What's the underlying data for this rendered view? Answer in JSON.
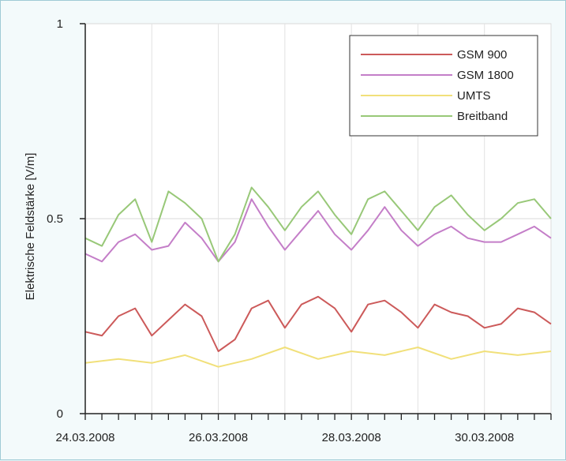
{
  "chart_data": {
    "type": "line",
    "title": "",
    "xlabel": "",
    "ylabel": "Elektrische Feldstärke [V/m]",
    "ylim": [
      0,
      1
    ],
    "xlim": [
      "2008-03-24",
      "2008-03-31"
    ],
    "y_ticks": [
      "0",
      "0.5",
      "1"
    ],
    "x_ticks": [
      "24.03.2008",
      "26.03.2008",
      "28.03.2008",
      "30.03.2008"
    ],
    "x_tick_dates": [
      "2008-03-24",
      "2008-03-26",
      "2008-03-28",
      "2008-03-30"
    ],
    "grid": true,
    "legend_position": "top-right",
    "series": [
      {
        "name": "GSM 900",
        "color": "#cc5a5a",
        "x": [
          "2008-03-24 00:00",
          "2008-03-24 06:00",
          "2008-03-24 12:00",
          "2008-03-24 18:00",
          "2008-03-25 00:00",
          "2008-03-25 06:00",
          "2008-03-25 12:00",
          "2008-03-25 18:00",
          "2008-03-26 00:00",
          "2008-03-26 06:00",
          "2008-03-26 12:00",
          "2008-03-26 18:00",
          "2008-03-27 00:00",
          "2008-03-27 06:00",
          "2008-03-27 12:00",
          "2008-03-27 18:00",
          "2008-03-28 00:00",
          "2008-03-28 06:00",
          "2008-03-28 12:00",
          "2008-03-28 18:00",
          "2008-03-29 00:00",
          "2008-03-29 06:00",
          "2008-03-29 12:00",
          "2008-03-29 18:00",
          "2008-03-30 00:00",
          "2008-03-30 06:00",
          "2008-03-30 12:00",
          "2008-03-30 18:00",
          "2008-03-31 00:00"
        ],
        "y": [
          0.21,
          0.2,
          0.25,
          0.27,
          0.2,
          0.24,
          0.28,
          0.25,
          0.16,
          0.19,
          0.27,
          0.29,
          0.22,
          0.28,
          0.3,
          0.27,
          0.21,
          0.28,
          0.29,
          0.26,
          0.22,
          0.28,
          0.26,
          0.25,
          0.22,
          0.23,
          0.27,
          0.26,
          0.23
        ]
      },
      {
        "name": "GSM 1800",
        "color": "#c47ec8",
        "x": [
          "2008-03-24 00:00",
          "2008-03-24 06:00",
          "2008-03-24 12:00",
          "2008-03-24 18:00",
          "2008-03-25 00:00",
          "2008-03-25 06:00",
          "2008-03-25 12:00",
          "2008-03-25 18:00",
          "2008-03-26 00:00",
          "2008-03-26 06:00",
          "2008-03-26 12:00",
          "2008-03-26 18:00",
          "2008-03-27 00:00",
          "2008-03-27 06:00",
          "2008-03-27 12:00",
          "2008-03-27 18:00",
          "2008-03-28 00:00",
          "2008-03-28 06:00",
          "2008-03-28 12:00",
          "2008-03-28 18:00",
          "2008-03-29 00:00",
          "2008-03-29 06:00",
          "2008-03-29 12:00",
          "2008-03-29 18:00",
          "2008-03-30 00:00",
          "2008-03-30 06:00",
          "2008-03-30 12:00",
          "2008-03-30 18:00",
          "2008-03-31 00:00"
        ],
        "y": [
          0.41,
          0.39,
          0.44,
          0.46,
          0.42,
          0.43,
          0.49,
          0.45,
          0.39,
          0.44,
          0.55,
          0.48,
          0.42,
          0.47,
          0.52,
          0.46,
          0.42,
          0.47,
          0.53,
          0.47,
          0.43,
          0.46,
          0.48,
          0.45,
          0.44,
          0.44,
          0.46,
          0.48,
          0.45
        ]
      },
      {
        "name": "UMTS",
        "color": "#f1e07a",
        "x": [
          "2008-03-24 00:00",
          "2008-03-24 12:00",
          "2008-03-25 00:00",
          "2008-03-25 12:00",
          "2008-03-26 00:00",
          "2008-03-26 12:00",
          "2008-03-27 00:00",
          "2008-03-27 12:00",
          "2008-03-28 00:00",
          "2008-03-28 12:00",
          "2008-03-29 00:00",
          "2008-03-29 12:00",
          "2008-03-30 00:00",
          "2008-03-30 12:00",
          "2008-03-31 00:00"
        ],
        "y": [
          0.13,
          0.14,
          0.13,
          0.15,
          0.12,
          0.14,
          0.17,
          0.14,
          0.16,
          0.15,
          0.17,
          0.14,
          0.16,
          0.15,
          0.16
        ]
      },
      {
        "name": "Breitband",
        "color": "#98c878",
        "x": [
          "2008-03-24 00:00",
          "2008-03-24 06:00",
          "2008-03-24 12:00",
          "2008-03-24 18:00",
          "2008-03-25 00:00",
          "2008-03-25 06:00",
          "2008-03-25 12:00",
          "2008-03-25 18:00",
          "2008-03-26 00:00",
          "2008-03-26 06:00",
          "2008-03-26 12:00",
          "2008-03-26 18:00",
          "2008-03-27 00:00",
          "2008-03-27 06:00",
          "2008-03-27 12:00",
          "2008-03-27 18:00",
          "2008-03-28 00:00",
          "2008-03-28 06:00",
          "2008-03-28 12:00",
          "2008-03-28 18:00",
          "2008-03-29 00:00",
          "2008-03-29 06:00",
          "2008-03-29 12:00",
          "2008-03-29 18:00",
          "2008-03-30 00:00",
          "2008-03-30 06:00",
          "2008-03-30 12:00",
          "2008-03-30 18:00",
          "2008-03-31 00:00"
        ],
        "y": [
          0.45,
          0.43,
          0.51,
          0.55,
          0.44,
          0.57,
          0.54,
          0.5,
          0.39,
          0.46,
          0.58,
          0.53,
          0.47,
          0.53,
          0.57,
          0.51,
          0.46,
          0.55,
          0.57,
          0.52,
          0.47,
          0.53,
          0.56,
          0.51,
          0.47,
          0.5,
          0.54,
          0.55,
          0.5
        ]
      }
    ]
  }
}
